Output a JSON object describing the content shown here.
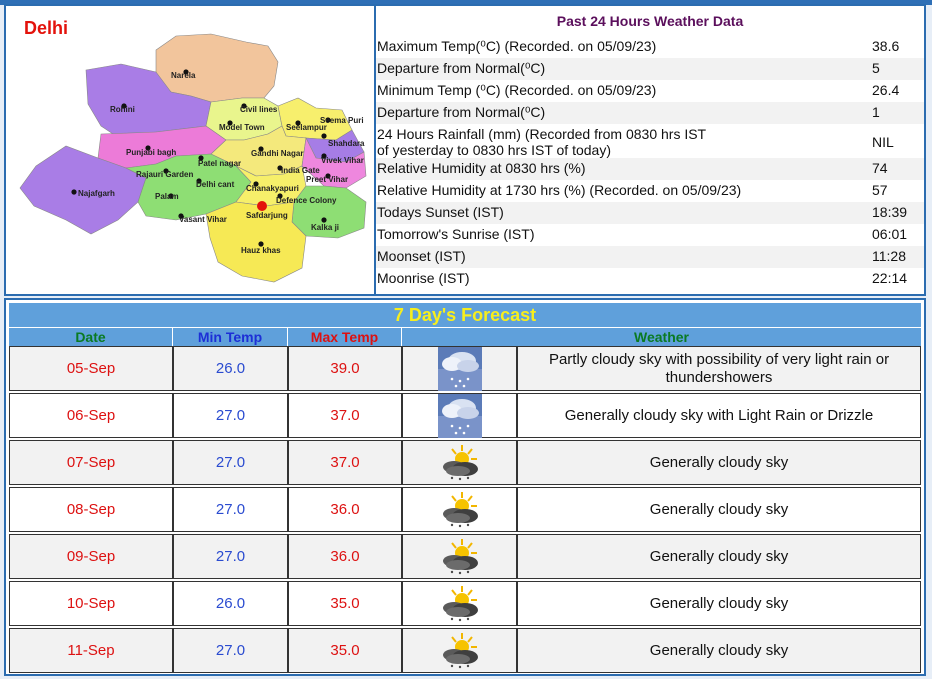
{
  "map": {
    "title": "Delhi",
    "districts": [
      "Narela",
      "Rohini",
      "Civil lines",
      "Model Town",
      "Seema Puri",
      "Seelampur",
      "Shahdara",
      "Vivek Vihar",
      "Punjabi bagh",
      "Gandhi Nagar",
      "Rajauri Garden",
      "Patel nagar",
      "India Gate",
      "Preet Vihar",
      "Najafgarh",
      "Delhi cant",
      "Chanakyapuri",
      "Palam",
      "Defence Colony",
      "Vasant Vihar",
      "Safdarjung",
      "Kalka ji",
      "Hauz khas"
    ],
    "highlight_station": "Safdarjung"
  },
  "past24": {
    "title": "Past 24 Hours Weather Data",
    "rows": [
      {
        "label": "Maximum Temp(⁰C) (Recorded. on 05/09/23)",
        "value": "38.6"
      },
      {
        "label": "Departure from Normal(⁰C)",
        "value": "5"
      },
      {
        "label": "Minimum Temp (⁰C) (Recorded. on 05/09/23)",
        "value": "26.4"
      },
      {
        "label": "Departure from Normal(⁰C)",
        "value": "1"
      },
      {
        "label": "24 Hours Rainfall (mm) (Recorded from 0830 hrs IST",
        "label2": "of yesterday to 0830 hrs IST of today)",
        "value": "NIL"
      },
      {
        "label": "Relative Humidity at 0830 hrs (%)",
        "value": "74"
      },
      {
        "label": "Relative Humidity at 1730 hrs (%) (Recorded. on 05/09/23)",
        "value": "57"
      },
      {
        "label": "Todays Sunset (IST)",
        "value": "18:39"
      },
      {
        "label": "Tomorrow's Sunrise (IST)",
        "value": "06:01"
      },
      {
        "label": "Moonset (IST)",
        "value": "11:28"
      },
      {
        "label": "Moonrise (IST)",
        "value": "22:14"
      }
    ]
  },
  "forecast": {
    "title": "7 Day's Forecast",
    "columns": {
      "date": "Date",
      "min": "Min Temp",
      "max": "Max Temp",
      "weather": "Weather"
    },
    "colors": {
      "date_header": "#0a7a22",
      "min_header": "#1d2fd6",
      "max_header": "#d11",
      "weather_header": "#0a7a22",
      "title": "#f7ee1d",
      "bar": "#5fa0db"
    },
    "rows": [
      {
        "date": "05-Sep",
        "min": "26.0",
        "max": "39.0",
        "icon": "rain-cloud-icon",
        "weather": "Partly cloudy sky with possibility of very light rain or thundershowers"
      },
      {
        "date": "06-Sep",
        "min": "27.0",
        "max": "37.0",
        "icon": "rain-cloud-icon",
        "weather": "Generally cloudy sky with Light Rain or Drizzle"
      },
      {
        "date": "07-Sep",
        "min": "27.0",
        "max": "37.0",
        "icon": "sun-cloud-icon",
        "weather": "Generally cloudy sky"
      },
      {
        "date": "08-Sep",
        "min": "27.0",
        "max": "36.0",
        "icon": "sun-cloud-icon",
        "weather": "Generally cloudy sky"
      },
      {
        "date": "09-Sep",
        "min": "27.0",
        "max": "36.0",
        "icon": "sun-cloud-icon",
        "weather": "Generally cloudy sky"
      },
      {
        "date": "10-Sep",
        "min": "26.0",
        "max": "35.0",
        "icon": "sun-cloud-icon",
        "weather": "Generally cloudy sky"
      },
      {
        "date": "11-Sep",
        "min": "27.0",
        "max": "35.0",
        "icon": "sun-cloud-icon",
        "weather": "Generally cloudy sky"
      }
    ]
  }
}
